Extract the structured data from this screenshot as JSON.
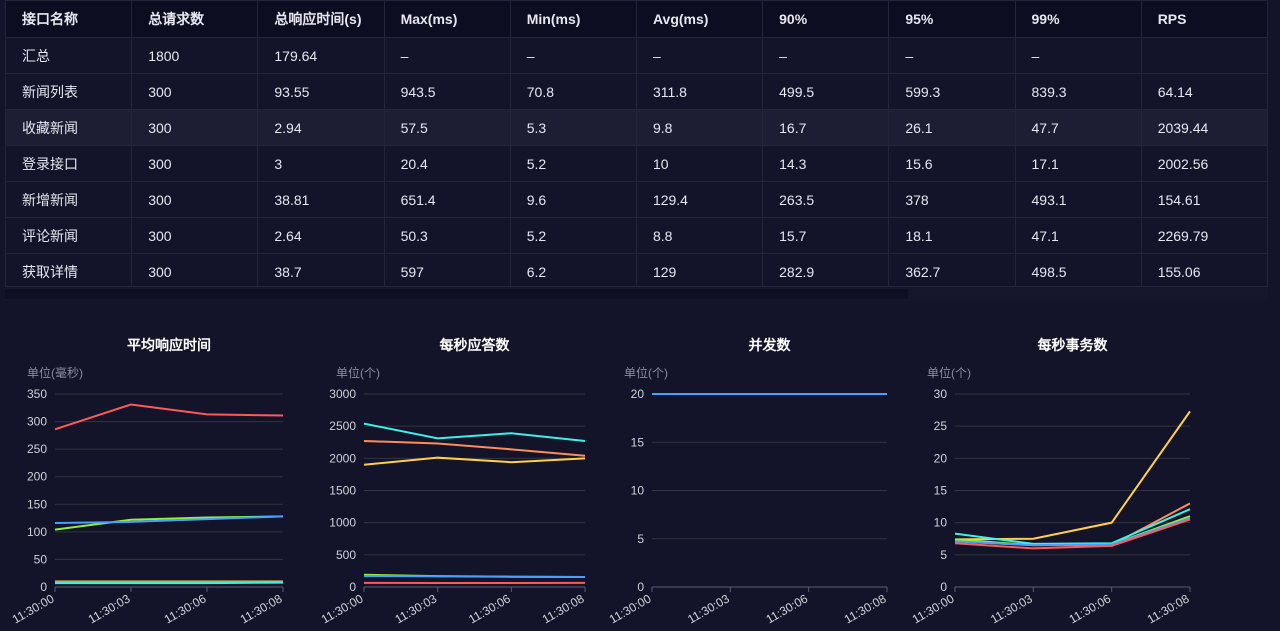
{
  "table": {
    "headers": [
      "接口名称",
      "总请求数",
      "总响应时间(s)",
      "Max(ms)",
      "Min(ms)",
      "Avg(ms)",
      "90%",
      "95%",
      "99%",
      "RPS"
    ],
    "rows": [
      [
        "汇总",
        "1800",
        "179.64",
        "–",
        "–",
        "–",
        "–",
        "–",
        "–",
        ""
      ],
      [
        "新闻列表",
        "300",
        "93.55",
        "943.5",
        "70.8",
        "311.8",
        "499.5",
        "599.3",
        "839.3",
        "64.14"
      ],
      [
        "收藏新闻",
        "300",
        "2.94",
        "57.5",
        "5.3",
        "9.8",
        "16.7",
        "26.1",
        "47.7",
        "2039.44"
      ],
      [
        "登录接口",
        "300",
        "3",
        "20.4",
        "5.2",
        "10",
        "14.3",
        "15.6",
        "17.1",
        "2002.56"
      ],
      [
        "新增新闻",
        "300",
        "38.81",
        "651.4",
        "9.6",
        "129.4",
        "263.5",
        "378",
        "493.1",
        "154.61"
      ],
      [
        "评论新闻",
        "300",
        "2.64",
        "50.3",
        "5.2",
        "8.8",
        "15.7",
        "18.1",
        "47.1",
        "2269.79"
      ],
      [
        "获取详情",
        "300",
        "38.7",
        "597",
        "6.2",
        "129",
        "282.9",
        "362.7",
        "498.5",
        "155.06"
      ]
    ]
  },
  "chart_data": [
    {
      "type": "line",
      "title": "平均响应时间",
      "ylabel": "单位(毫秒)",
      "categories": [
        "11:30:00",
        "11:30:03",
        "11:30:06",
        "11:30:08"
      ],
      "ylim": [
        0,
        350
      ],
      "yticks": [
        0,
        50,
        100,
        150,
        200,
        250,
        300,
        350
      ],
      "grid": true,
      "series": [
        {
          "color": "#ff5a5a",
          "values": [
            286,
            331,
            313,
            311
          ]
        },
        {
          "color": "#8cf03c",
          "values": [
            104,
            122,
            126,
            128
          ]
        },
        {
          "color": "#4a9eff",
          "values": [
            116,
            118,
            123,
            128
          ]
        },
        {
          "color": "#ffd04a",
          "values": [
            10,
            10,
            10,
            10
          ]
        },
        {
          "color": "#ff8c5a",
          "values": [
            9,
            9,
            9,
            9
          ]
        },
        {
          "color": "#3ef0e6",
          "values": [
            7,
            7,
            7,
            8
          ]
        }
      ]
    },
    {
      "type": "line",
      "title": "每秒应答数",
      "ylabel": "单位(个)",
      "categories": [
        "11:30:00",
        "11:30:03",
        "11:30:06",
        "11:30:08"
      ],
      "ylim": [
        0,
        3000
      ],
      "yticks": [
        0,
        500,
        1000,
        1500,
        2000,
        2500,
        3000
      ],
      "grid": true,
      "series": [
        {
          "color": "#3ef0e6",
          "values": [
            2540,
            2310,
            2390,
            2270
          ]
        },
        {
          "color": "#ff8c5a",
          "values": [
            2270,
            2230,
            2140,
            2040
          ]
        },
        {
          "color": "#ffd04a",
          "values": [
            1900,
            2010,
            1940,
            2000
          ]
        },
        {
          "color": "#8cf03c",
          "values": [
            190,
            170,
            160,
            155
          ]
        },
        {
          "color": "#4a9eff",
          "values": [
            170,
            165,
            160,
            155
          ]
        },
        {
          "color": "#ff5a5a",
          "values": [
            65,
            62,
            63,
            64
          ]
        }
      ]
    },
    {
      "type": "line",
      "title": "并发数",
      "ylabel": "单位(个)",
      "categories": [
        "11:30:00",
        "11:30:03",
        "11:30:06",
        "11:30:08"
      ],
      "ylim": [
        0,
        20
      ],
      "yticks": [
        0,
        5,
        10,
        15,
        20
      ],
      "grid": true,
      "series": [
        {
          "color": "#4a9eff",
          "values": [
            20,
            20,
            20,
            20
          ]
        }
      ]
    },
    {
      "type": "line",
      "title": "每秒事务数",
      "ylabel": "单位(个)",
      "categories": [
        "11:30:00",
        "11:30:03",
        "11:30:06",
        "11:30:08"
      ],
      "ylim": [
        0,
        30
      ],
      "yticks": [
        0,
        5,
        10,
        15,
        20,
        25,
        30
      ],
      "grid": true,
      "series": [
        {
          "color": "#ffd04a",
          "values": [
            7.4,
            7.5,
            10,
            27.3
          ]
        },
        {
          "color": "#ff8c5a",
          "values": [
            7.1,
            6.5,
            6.5,
            13
          ]
        },
        {
          "color": "#3ef0e6",
          "values": [
            8.3,
            6.7,
            6.8,
            12.1
          ]
        },
        {
          "color": "#8cf03c",
          "values": [
            7.4,
            6.5,
            6.6,
            11
          ]
        },
        {
          "color": "#4a9eff",
          "values": [
            7.1,
            6.5,
            6.6,
            10.7
          ]
        },
        {
          "color": "#ff5a5a",
          "values": [
            6.8,
            6.0,
            6.4,
            10.5
          ]
        }
      ]
    }
  ]
}
